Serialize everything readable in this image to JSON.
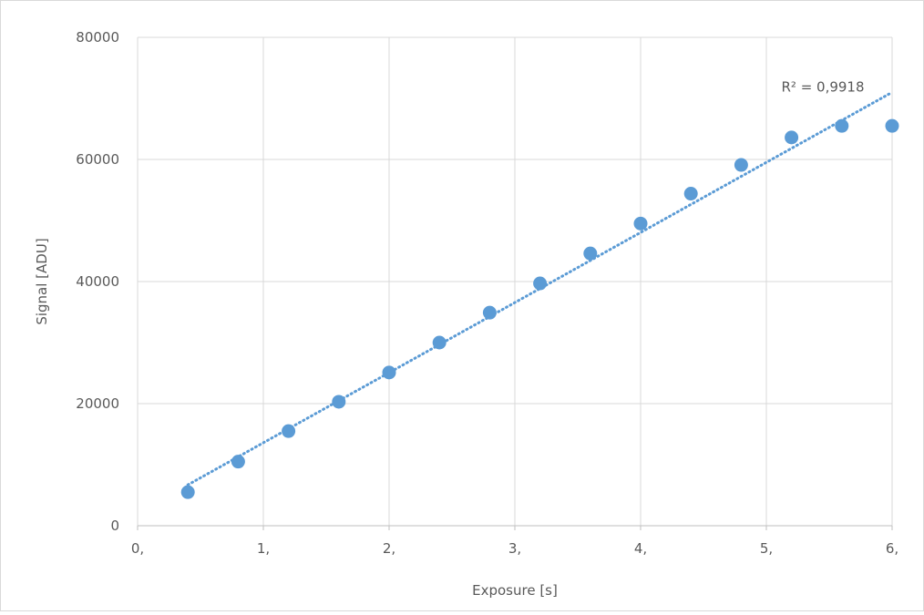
{
  "chart_data": {
    "type": "scatter",
    "title": "",
    "xlabel": "Exposure [s]",
    "ylabel": "Signal [ADU]",
    "xlim": [
      0,
      6
    ],
    "ylim": [
      0,
      80000
    ],
    "x_ticks": [
      0,
      1,
      2,
      3,
      4,
      5,
      6
    ],
    "x_tick_labels": [
      "0,",
      "1,",
      "2,",
      "3,",
      "4,",
      "5,",
      "6,"
    ],
    "y_ticks": [
      0,
      20000,
      40000,
      60000,
      80000
    ],
    "y_tick_labels": [
      "0",
      "20000",
      "40000",
      "60000",
      "80000"
    ],
    "grid": true,
    "legend": "none",
    "series": [
      {
        "x": [
          0.4,
          0.8,
          1.2,
          1.6,
          2.0,
          2.4,
          2.8,
          3.2,
          3.6,
          4.0,
          4.4,
          4.8,
          5.2,
          5.6,
          6.0
        ],
        "y": [
          5500,
          10500,
          15500,
          20300,
          25100,
          30000,
          34900,
          39700,
          44600,
          49500,
          54400,
          59100,
          63600,
          65500,
          65500
        ],
        "color": "#5b9bd5"
      }
    ],
    "trendline": {
      "type": "linear",
      "color": "#5b9bd5",
      "style": "dotted",
      "x_range": [
        0.4,
        6.0
      ],
      "y_range": [
        6700,
        71000
      ],
      "label": "R² = 0,9918"
    }
  }
}
